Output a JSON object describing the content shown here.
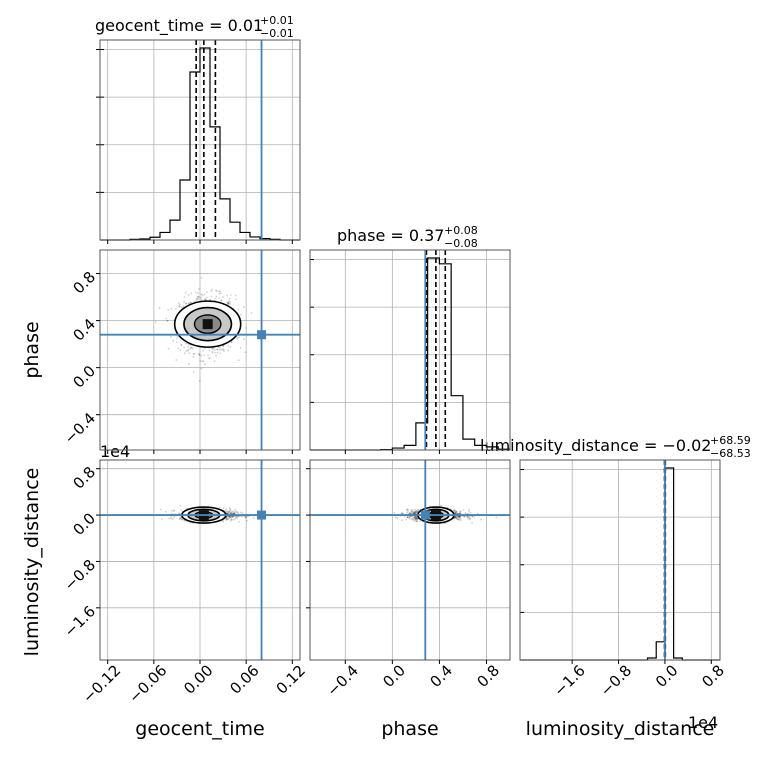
{
  "chart_data": {
    "type": "scatter",
    "subtype": "corner-plot",
    "grid": true,
    "accent_color": "#4682b4",
    "truth": {
      "geocent_time": 0.08,
      "phase": 0.28,
      "luminosity_distance": 0.0
    },
    "parameters": [
      {
        "name": "geocent_time",
        "title_prefix": "geocent_time = 0.01",
        "title_sup": "+0.01",
        "title_sub": "−0.01",
        "axis_label": "geocent_time",
        "range": [
          -0.13,
          0.13
        ],
        "ticks": [
          -0.12,
          -0.06,
          0.0,
          0.06,
          0.12
        ],
        "tick_labels": [
          "−0.12",
          "−0.06",
          "0.00",
          "0.06",
          "0.12"
        ],
        "quantiles": [
          -0.005,
          0.005,
          0.02
        ],
        "hist_bins": [
          -0.13,
          -0.117,
          -0.104,
          -0.091,
          -0.078,
          -0.065,
          -0.052,
          -0.039,
          -0.026,
          -0.013,
          0.0,
          0.013,
          0.026,
          0.039,
          0.052,
          0.065,
          0.078,
          0.091,
          0.104,
          0.117,
          0.13
        ],
        "hist_counts": [
          0,
          0,
          0,
          2,
          3,
          8,
          22,
          58,
          175,
          490,
          560,
          330,
          120,
          52,
          22,
          9,
          4,
          2,
          0,
          0
        ]
      },
      {
        "name": "phase",
        "title_prefix": "phase = 0.37",
        "title_sup": "+0.08",
        "title_sub": "−0.08",
        "axis_label": "phase",
        "range": [
          -0.7,
          1.0
        ],
        "ticks": [
          -0.4,
          0.0,
          0.4,
          0.8
        ],
        "tick_labels": [
          "−0.4",
          "0.0",
          "0.4",
          "0.8"
        ],
        "quantiles": [
          0.29,
          0.37,
          0.45
        ],
        "hist_bins": [
          -0.7,
          -0.6,
          -0.5,
          -0.4,
          -0.3,
          -0.2,
          -0.1,
          0.0,
          0.1,
          0.2,
          0.3,
          0.4,
          0.5,
          0.6,
          0.7,
          0.8,
          0.9,
          1.0
        ],
        "hist_counts": [
          0,
          0,
          0,
          0,
          0,
          0,
          1,
          5,
          12,
          70,
          495,
          480,
          140,
          28,
          12,
          8,
          2
        ]
      },
      {
        "name": "luminosity_distance",
        "title_prefix": "luminosity_distance = −0.02",
        "title_sup": "+68.59",
        "title_sub": "−68.53",
        "axis_label": "luminosity_distance",
        "scale_label": "1e4",
        "range": [
          -2.5,
          0.95
        ],
        "ticks": [
          -1.6,
          -0.8,
          0.0,
          0.8
        ],
        "tick_labels": [
          "−1.6",
          "−0.8",
          "0.0",
          "0.8"
        ],
        "quantiles": [
          -0.007,
          0.0,
          0.007
        ],
        "hist_bins": [
          -2.5,
          -1.0,
          -0.3,
          -0.15,
          0.0,
          0.15,
          0.3,
          0.95
        ],
        "hist_counts": [
          0,
          0,
          2,
          18,
          190,
          2,
          0
        ]
      }
    ]
  }
}
